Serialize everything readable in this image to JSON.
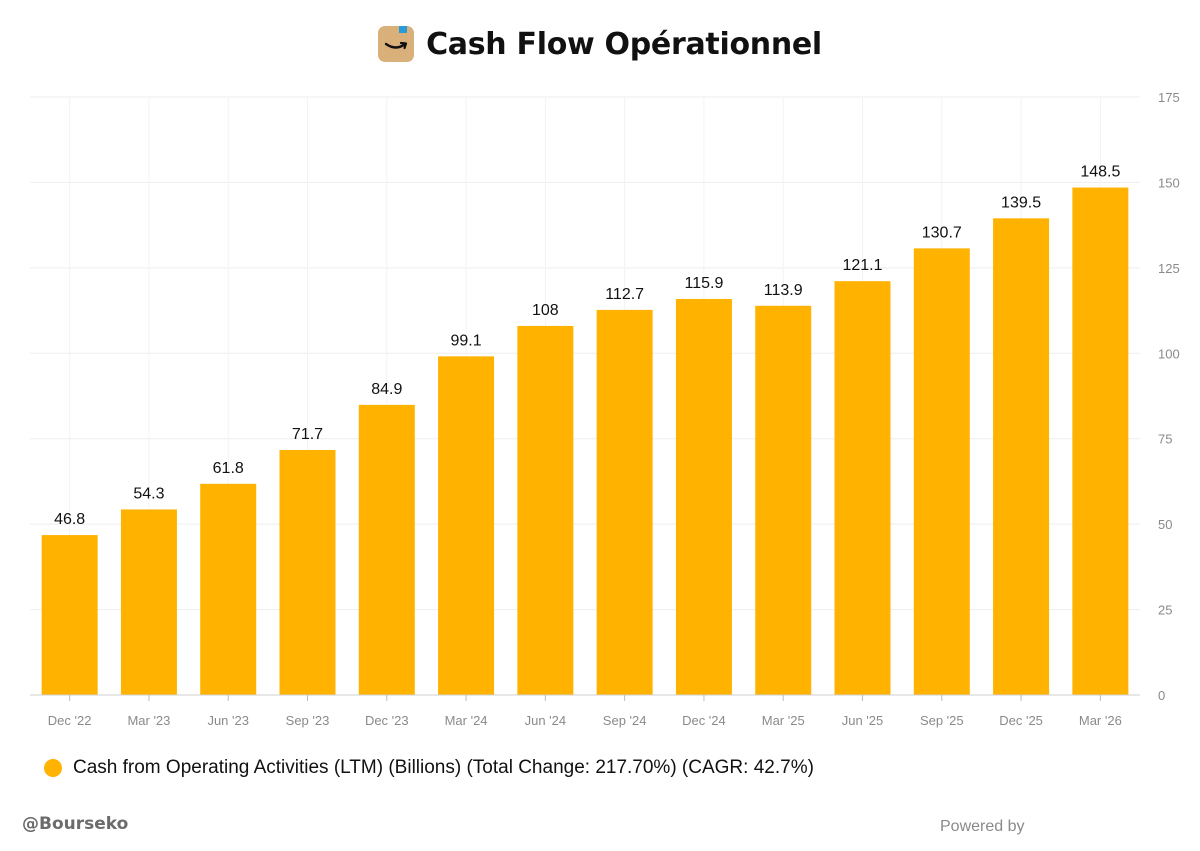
{
  "header": {
    "title": "Cash Flow Opérationnel",
    "logo_icon": "amazon-box-icon"
  },
  "chart_data": {
    "type": "bar",
    "title": "Cash Flow Opérationnel",
    "categories": [
      "Dec '22",
      "Mar '23",
      "Jun '23",
      "Sep '23",
      "Dec '23",
      "Mar '24",
      "Jun '24",
      "Sep '24",
      "Dec '24",
      "Mar '25",
      "Jun '25",
      "Sep '25",
      "Dec '25",
      "Mar '26"
    ],
    "values": [
      46.8,
      54.3,
      61.8,
      71.7,
      84.9,
      99.1,
      108,
      112.7,
      115.9,
      113.9,
      121.1,
      130.7,
      139.5,
      148.5
    ],
    "data_labels": [
      "46.8",
      "54.3",
      "61.8",
      "71.7",
      "84.9",
      "99.1",
      "108",
      "112.7",
      "115.9",
      "113.9",
      "121.1",
      "130.7",
      "139.5",
      "148.5"
    ],
    "y_ticks": [
      0,
      25,
      50,
      75,
      100,
      125,
      150,
      175
    ],
    "ylim": [
      0,
      175
    ],
    "y_axis_side": "right",
    "grid": true,
    "bar_color": "#ffb300",
    "series": [
      {
        "name": "Cash from Operating Activities (LTM) (Billions) (Total Change: 217.70%) (CAGR: 42.7%)",
        "color": "#ffb300"
      }
    ],
    "legend_position": "bottom-left"
  },
  "legend": {
    "label": "Cash from Operating Activities (LTM) (Billions) (Total Change: 217.70%) (CAGR: 42.7%)"
  },
  "footer": {
    "handle": "@Bourseko",
    "powered_by": "Powered by"
  }
}
